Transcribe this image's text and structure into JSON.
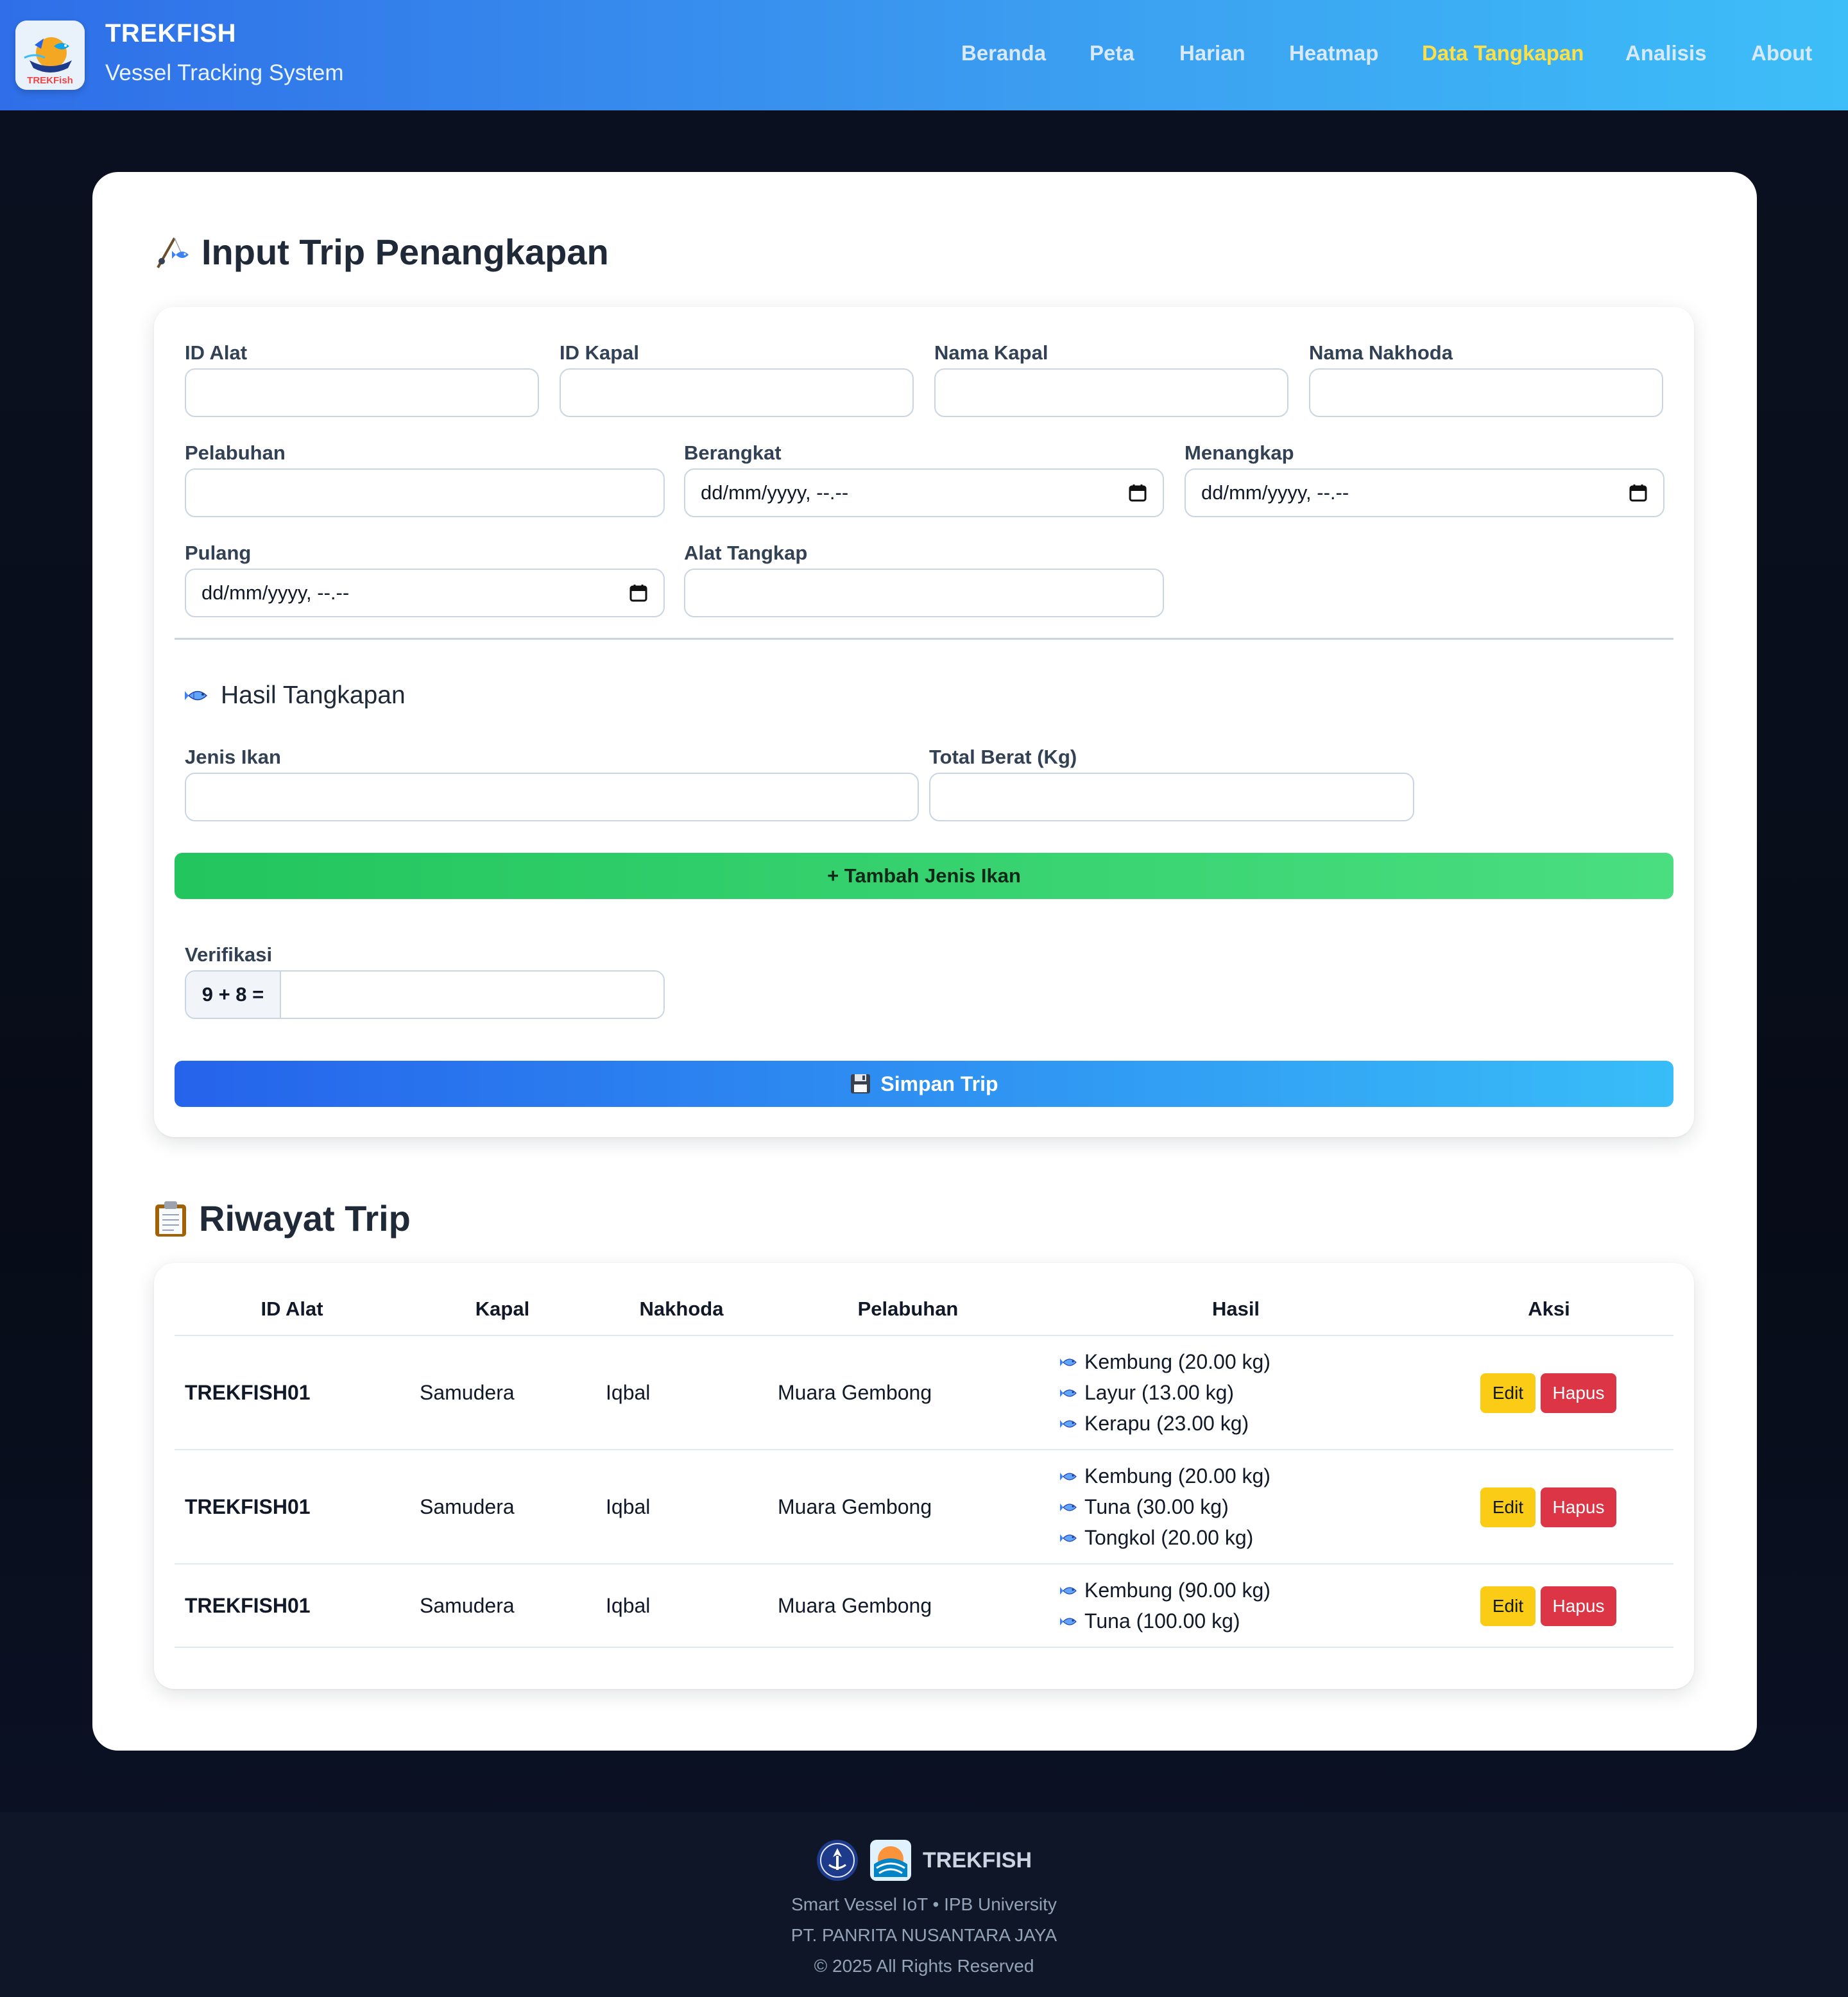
{
  "app": {
    "brand_title": "TREKFISH",
    "brand_subtitle": "Vessel Tracking System",
    "logo_text": "TREKFish"
  },
  "nav": {
    "items": [
      {
        "label": "Beranda",
        "active": false
      },
      {
        "label": "Peta",
        "active": false
      },
      {
        "label": "Harian",
        "active": false
      },
      {
        "label": "Heatmap",
        "active": false
      },
      {
        "label": "Data Tangkapan",
        "active": true
      },
      {
        "label": "Analisis",
        "active": false
      },
      {
        "label": "About",
        "active": false
      }
    ]
  },
  "form": {
    "title": "Input Trip Penangkapan",
    "title_icon": "fishing-pole-icon",
    "fields": {
      "id_alat": {
        "label": "ID Alat",
        "value": ""
      },
      "id_kapal": {
        "label": "ID Kapal",
        "value": ""
      },
      "nama_kapal": {
        "label": "Nama Kapal",
        "value": ""
      },
      "nama_nakhoda": {
        "label": "Nama Nakhoda",
        "value": ""
      },
      "pelabuhan": {
        "label": "Pelabuhan",
        "value": ""
      },
      "berangkat": {
        "label": "Berangkat",
        "placeholder": "dd/mm/yyyy, --.--"
      },
      "menangkap": {
        "label": "Menangkap",
        "placeholder": "dd/mm/yyyy, --.--"
      },
      "pulang": {
        "label": "Pulang",
        "placeholder": "dd/mm/yyyy, --.--"
      },
      "alat_tangkap": {
        "label": "Alat Tangkap",
        "value": ""
      }
    },
    "catch": {
      "title": "Hasil Tangkapan",
      "jenis_ikan_label": "Jenis Ikan",
      "total_berat_label": "Total Berat (Kg)",
      "add_button": "+ Tambah Jenis Ikan"
    },
    "verification": {
      "label": "Verifikasi",
      "question": "9 + 8 =",
      "answer": ""
    },
    "save_button": "Simpan Trip",
    "save_icon": "floppy-disk-icon"
  },
  "history": {
    "title": "Riwayat Trip",
    "title_icon": "clipboard-icon",
    "columns": [
      "ID Alat",
      "Kapal",
      "Nakhoda",
      "Pelabuhan",
      "Hasil",
      "Aksi"
    ],
    "rows": [
      {
        "id_alat": "TREKFISH01",
        "kapal": "Samudera",
        "nakhoda": "Iqbal",
        "pelabuhan": "Muara Gembong",
        "hasil": [
          "Kembung (20.00 kg)",
          "Layur (13.00 kg)",
          "Kerapu (23.00 kg)"
        ],
        "edit": "Edit",
        "hapus": "Hapus"
      },
      {
        "id_alat": "TREKFISH01",
        "kapal": "Samudera",
        "nakhoda": "Iqbal",
        "pelabuhan": "Muara Gembong",
        "hasil": [
          "Kembung (20.00 kg)",
          "Tuna (30.00 kg)",
          "Tongkol (20.00 kg)"
        ],
        "edit": "Edit",
        "hapus": "Hapus"
      },
      {
        "id_alat": "TREKFISH01",
        "kapal": "Samudera",
        "nakhoda": "Iqbal",
        "pelabuhan": "Muara Gembong",
        "hasil": [
          "Kembung (90.00 kg)",
          "Tuna (100.00 kg)"
        ],
        "edit": "Edit",
        "hapus": "Hapus"
      }
    ]
  },
  "footer": {
    "brand": "TREKFISH",
    "line1": "Smart Vessel IoT • IPB University",
    "line2": "PT. PANRITA NUSANTARA JAYA",
    "line3": "© 2025 All Rights Reserved"
  },
  "colors": {
    "nav_gradient_start": "#2f6ee8",
    "nav_gradient_end": "#3dbef8",
    "nav_active": "#fde047",
    "green_button": "#22c55e",
    "blue_button": "#2563eb",
    "edit_button": "#facc15",
    "delete_button": "#dc3545",
    "page_background": "#0b1120"
  }
}
